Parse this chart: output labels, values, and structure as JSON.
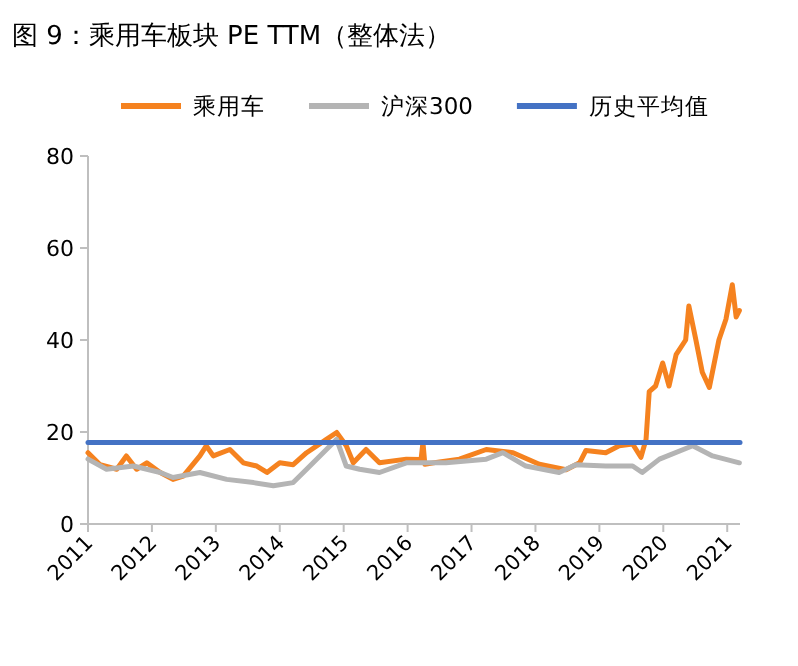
{
  "chart_data": {
    "type": "line",
    "title": "图 9：乘用车板块 PE TTM（整体法）",
    "xlim": [
      2011,
      2021.2
    ],
    "ylim": [
      0,
      80
    ],
    "xticks": [
      2011,
      2012,
      2013,
      2014,
      2015,
      2016,
      2017,
      2018,
      2019,
      2020,
      2021
    ],
    "yticks": [
      0,
      20,
      40,
      60,
      80
    ],
    "legend": "top",
    "series": [
      {
        "name": "乘用车",
        "color": "#f5821f",
        "x": [
          2011.0,
          2011.19,
          2011.45,
          2011.6,
          2011.76,
          2011.92,
          2012.13,
          2012.33,
          2012.49,
          2012.75,
          2012.85,
          2012.96,
          2013.22,
          2013.43,
          2013.64,
          2013.8,
          2014.0,
          2014.21,
          2014.42,
          2014.73,
          2014.89,
          2015.04,
          2015.15,
          2015.35,
          2015.56,
          2015.98,
          2016.21,
          2016.24,
          2016.27,
          2016.5,
          2016.81,
          2017.23,
          2017.65,
          2018.06,
          2018.48,
          2018.69,
          2018.79,
          2019.1,
          2019.31,
          2019.52,
          2019.65,
          2019.73,
          2019.78,
          2019.88,
          2019.99,
          2020.09,
          2020.2,
          2020.35,
          2020.4,
          2020.51,
          2020.61,
          2020.72,
          2020.87,
          2020.98,
          2021.08,
          2021.14,
          2021.19
        ],
        "values": [
          15.5,
          12.9,
          11.9,
          14.8,
          11.9,
          13.3,
          11.2,
          9.7,
          10.4,
          14.8,
          17,
          14.8,
          16.2,
          13.3,
          12.6,
          11.2,
          13.3,
          12.9,
          15.5,
          18.4,
          19.9,
          17,
          13.3,
          16.2,
          13.3,
          14.1,
          14,
          17.7,
          13,
          13.5,
          14.1,
          16.2,
          15.5,
          13,
          11.8,
          13.3,
          16,
          15.5,
          17,
          17.4,
          14.5,
          18.4,
          28.8,
          30,
          35,
          30,
          36.8,
          40,
          47.4,
          40,
          33,
          29.7,
          40,
          44.5,
          52,
          45,
          46.4
        ]
      },
      {
        "name": "沪深300",
        "color": "#b4b4b4",
        "x": [
          2011.0,
          2011.29,
          2011.71,
          2012.13,
          2012.33,
          2012.75,
          2013.17,
          2013.59,
          2013.9,
          2014.21,
          2014.42,
          2014.73,
          2014.89,
          2015.04,
          2015.25,
          2015.56,
          2015.98,
          2016.6,
          2017.23,
          2017.49,
          2017.85,
          2018.37,
          2018.63,
          2019.1,
          2019.52,
          2019.67,
          2019.94,
          2020.46,
          2020.77,
          2021.19
        ],
        "values": [
          14.1,
          11.9,
          12.6,
          11.2,
          10.1,
          11.2,
          9.7,
          9,
          8.3,
          9,
          11.9,
          16.2,
          18.4,
          12.6,
          11.9,
          11.2,
          13.3,
          13.3,
          14.1,
          15.5,
          12.6,
          11.2,
          12.9,
          12.6,
          12.6,
          11.2,
          14.1,
          17,
          14.8,
          13.3
        ]
      },
      {
        "name": "历史平均值",
        "color": "#4472c4",
        "x": [
          2011.0,
          2021.2
        ],
        "values": [
          17.7,
          17.7
        ]
      }
    ]
  }
}
